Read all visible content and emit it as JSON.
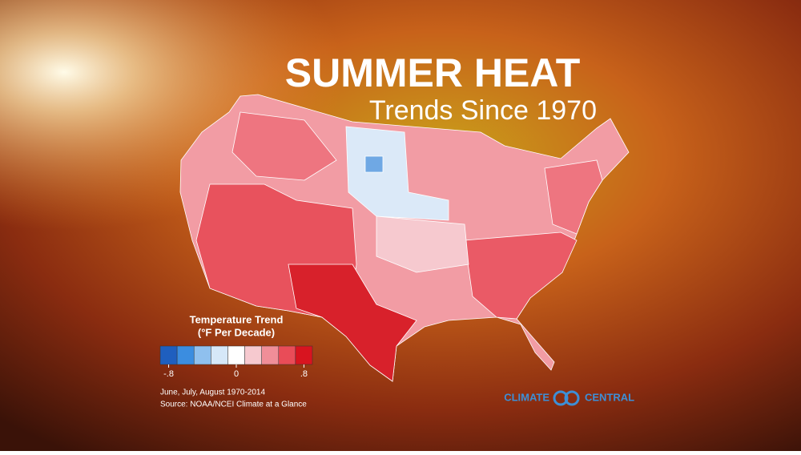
{
  "header": {
    "title": "SUMMER HEAT",
    "subtitle": "Trends Since 1970"
  },
  "legend": {
    "title": [
      "Temperature Trend",
      "(°F Per Decade)"
    ],
    "colors": [
      "#1f5fbf",
      "#3b8de0",
      "#8fc0ee",
      "#d6e8f8",
      "#ffffff",
      "#f6c9cf",
      "#f08e98",
      "#e94c58",
      "#d8141f"
    ],
    "ticks": [
      {
        "value": -0.8,
        "label": "-.8"
      },
      0,
      {
        "value": 0.8,
        "label": ".8"
      }
    ]
  },
  "footnote": [
    "June, July, August 1970-2014",
    "Source: NOAA/NCEI Climate at a Glance"
  ],
  "brand": {
    "left": "CLIMATE",
    "right": "CENTRAL"
  }
}
